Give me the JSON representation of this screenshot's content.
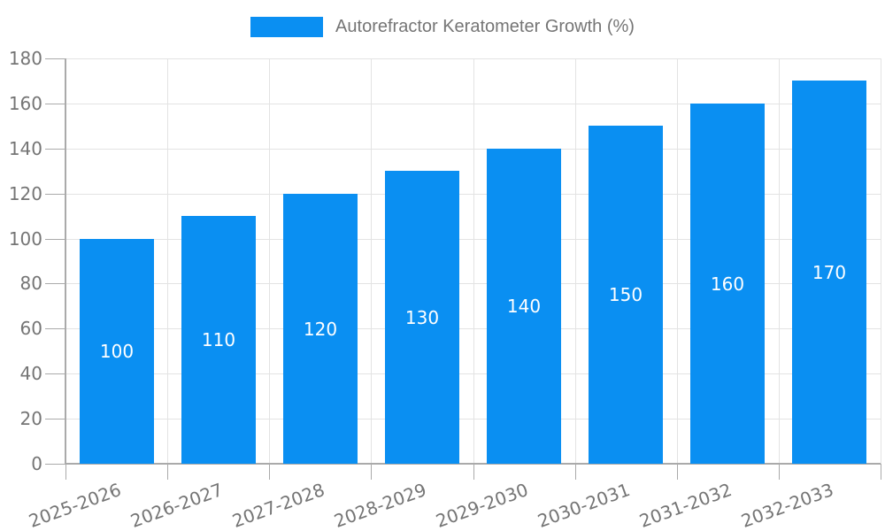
{
  "legend": {
    "label": "Autorefractor Keratometer Growth (%)"
  },
  "chart_data": {
    "type": "bar",
    "title": "Autorefractor Keratometer Growth (%)",
    "categories": [
      "2025-2026",
      "2026-2027",
      "2027-2028",
      "2028-2029",
      "2029-2030",
      "2030-2031",
      "2031-2032",
      "2032-2033"
    ],
    "values": [
      100,
      110,
      120,
      130,
      140,
      150,
      160,
      170
    ],
    "xlabel": "",
    "ylabel": "",
    "ylim": [
      0,
      180
    ],
    "ytick_step": 20,
    "yticks": [
      0,
      20,
      40,
      60,
      80,
      100,
      120,
      140,
      160,
      180
    ],
    "grid": true,
    "legend_position": "top",
    "x_label_rotation_deg": 20,
    "colors": {
      "bar": "#0a8ff2",
      "value_label": "#ffffff",
      "axis_text": "#757575",
      "grid_line": "#e3e3e3",
      "axis_line": "#aaaaaa",
      "background": "#ffffff"
    }
  }
}
